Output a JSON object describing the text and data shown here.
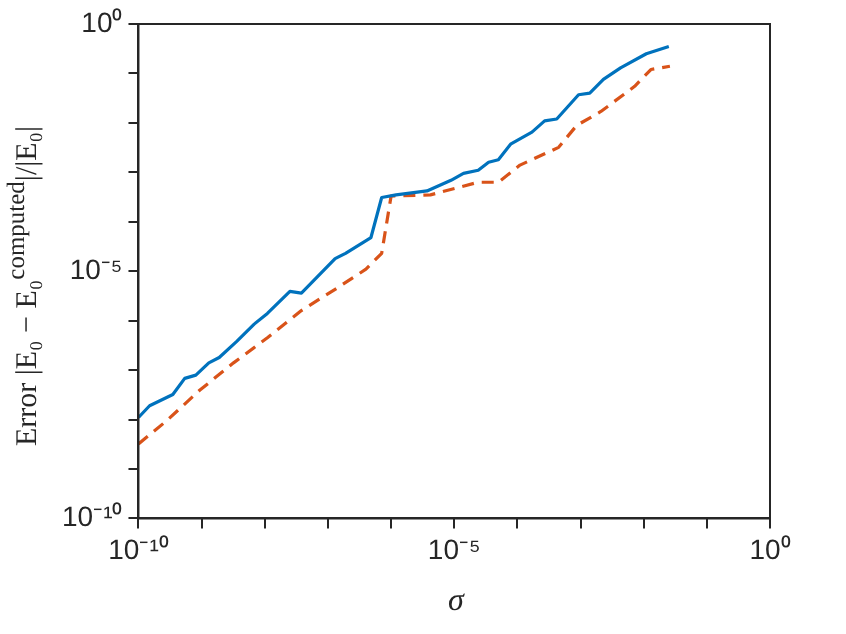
{
  "chart_data": {
    "type": "line",
    "xlabel": "σ",
    "ylabel": "Error |E₀ − E₀$^{computed}$|/|E₀|",
    "log": "xy",
    "grid": false,
    "legend": false,
    "xlim": [
      1e-10,
      1
    ],
    "ylim": [
      1e-10,
      1
    ],
    "xticks": [
      {
        "value": 1e-10,
        "label": "10⁻¹⁰"
      },
      {
        "value": 1e-09,
        "label": null
      },
      {
        "value": 1e-08,
        "label": null
      },
      {
        "value": 1e-07,
        "label": null
      },
      {
        "value": 1e-06,
        "label": null
      },
      {
        "value": 1e-05,
        "label": "10⁻⁵"
      },
      {
        "value": 0.0001,
        "label": null
      },
      {
        "value": 0.001,
        "label": null
      },
      {
        "value": 0.01,
        "label": null
      },
      {
        "value": 0.1,
        "label": null
      },
      {
        "value": 1,
        "label": "10⁰"
      }
    ],
    "yticks": [
      {
        "value": 1e-10,
        "label": "10⁻¹⁰"
      },
      {
        "value": 1e-09,
        "label": null
      },
      {
        "value": 1e-08,
        "label": null
      },
      {
        "value": 1e-07,
        "label": null
      },
      {
        "value": 1e-06,
        "label": null
      },
      {
        "value": 1e-05,
        "label": "10⁻⁵"
      },
      {
        "value": 0.0001,
        "label": null
      },
      {
        "value": 0.001,
        "label": null
      },
      {
        "value": 0.01,
        "label": null
      },
      {
        "value": 0.1,
        "label": null
      },
      {
        "value": 1,
        "label": "10⁰"
      }
    ],
    "series": [
      {
        "color": "#0072bd",
        "line_style": "solid",
        "marker": "none",
        "x": [
          1e-10,
          1.5e-10,
          3.5e-10,
          5.4e-10,
          8.1e-10,
          1.3e-09,
          1.9e-09,
          3.6e-09,
          6.8e-09,
          1.1e-08,
          2.5e-08,
          3.8e-08,
          1.3e-07,
          1.9e-07,
          4.8e-07,
          7.1e-07,
          1.2e-06,
          3.7e-06,
          8.9e-06,
          1.4e-05,
          2.4e-05,
          3.5e-05,
          5e-05,
          7.8e-05,
          0.00017,
          0.00027,
          0.00042,
          0.00093,
          0.0014,
          0.0023,
          0.0043,
          0.011,
          0.025
        ],
        "values": [
          1.1e-08,
          1.9e-08,
          3.2e-08,
          6.8e-08,
          7.9e-08,
          1.4e-07,
          1.8e-07,
          3.8e-07,
          8.5e-07,
          1.4e-06,
          3.9e-06,
          3.6e-06,
          1.8e-05,
          2.3e-05,
          4.8e-05,
          0.00031,
          0.00035,
          0.00042,
          0.00069,
          0.00095,
          0.0011,
          0.0016,
          0.0018,
          0.0037,
          0.0065,
          0.011,
          0.012,
          0.037,
          0.04,
          0.076,
          0.13,
          0.25,
          0.35
        ]
      },
      {
        "color": "#d95319",
        "line_style": "dashed",
        "marker": "none",
        "x": [
          1e-10,
          2.7e-10,
          9.3e-10,
          3.2e-09,
          1.1e-08,
          3.8e-08,
          1.3e-07,
          4e-07,
          7.1e-07,
          1e-06,
          4.2e-06,
          2.4e-05,
          5e-05,
          0.00011,
          0.00045,
          0.00087,
          0.0021,
          0.0072,
          0.013,
          0.026
        ],
        "values": [
          3.2e-09,
          9.1e-09,
          3.9e-08,
          1.4e-07,
          4.5e-07,
          1.6e-06,
          4.3e-06,
          1.1e-05,
          2.3e-05,
          0.00033,
          0.00035,
          0.00063,
          0.00063,
          0.0014,
          0.0032,
          0.0089,
          0.017,
          0.055,
          0.12,
          0.14
        ]
      }
    ]
  }
}
